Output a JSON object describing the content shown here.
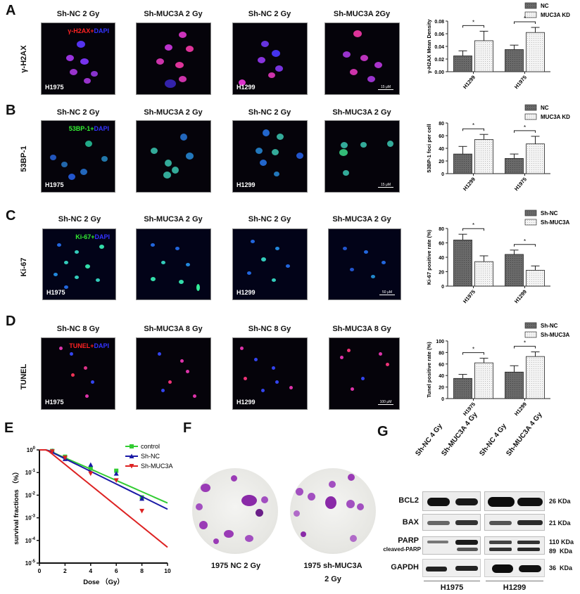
{
  "figure": {
    "panels": {
      "A": {
        "letter": "A",
        "row_label": "γ-H2AX",
        "stain_red": "γ-H2AX",
        "stain_plus": "+",
        "stain_blue": "DAPI",
        "conditions": [
          "Sh-NC  2 Gy",
          "Sh-MUC3A 2 Gy",
          "Sh-NC  2 Gy",
          "Sh-MUC3A 2Gy"
        ],
        "cell_lines": [
          "H1975",
          "",
          "H1299",
          ""
        ],
        "scale_bar": "15 μM"
      },
      "B": {
        "letter": "B",
        "row_label": "53BP-1",
        "stain_green": "53BP-1",
        "stain_plus": "+",
        "stain_blue": "DAPI",
        "conditions": [
          "Sh-NC  2 Gy",
          "Sh-MUC3A 2 Gy",
          "Sh-NC  2 Gy",
          "Sh-MUC3A 2 Gy"
        ],
        "cell_lines": [
          "H1975",
          "",
          "H1299",
          ""
        ],
        "scale_bar": "15 μM"
      },
      "C": {
        "letter": "C",
        "row_label": "Ki-67",
        "stain_green": "Ki-67",
        "stain_plus": "+",
        "stain_blue": "DAPI",
        "conditions": [
          "Sh-NC  2 Gy",
          "Sh-MUC3A 2 Gy",
          "Sh-NC  2 Gy",
          "Sh-MUC3A 2 Gy"
        ],
        "cell_lines": [
          "H1975",
          "",
          "H1299",
          ""
        ],
        "scale_bar": "50 μM"
      },
      "D": {
        "letter": "D",
        "row_label": "TUNEL",
        "stain_red": "TUNEL",
        "stain_plus": "+",
        "stain_blue": "DAPI",
        "conditions": [
          "Sh-NC  8 Gy",
          "Sh-MUC3A 8 Gy",
          "Sh-NC  8 Gy",
          "Sh-MUC3A 8 Gy"
        ],
        "cell_lines": [
          "H1975",
          "",
          "H1299",
          ""
        ],
        "scale_bar": "100 μM"
      },
      "E": {
        "letter": "E"
      },
      "F": {
        "letter": "F",
        "dish_labels": [
          "1975 NC 2 Gy",
          "1975 sh-MUC3A",
          "2 Gy"
        ]
      },
      "G": {
        "letter": "G",
        "lanes": [
          "Sh-NC 4 Gy",
          "Sh-MUC3A 4 Gy",
          "Sh-NC 4 Gy",
          "Sh-MUC3A 4 Gy"
        ],
        "proteins": [
          "BCL2",
          "BAX",
          "PARP",
          "cleaved-PARP",
          "GAPDH"
        ],
        "weights": [
          "26 KDa",
          "21 KDa",
          "110 KDa",
          "89  KDa",
          "36  KDa"
        ],
        "cell_lines": [
          "H1975",
          "H1299"
        ]
      }
    }
  },
  "chart_data": [
    {
      "id": "A-chart",
      "type": "bar",
      "categories": [
        "H1299",
        "H1975"
      ],
      "series": [
        {
          "name": "NC",
          "values": [
            0.025,
            0.035
          ],
          "errors": [
            0.008,
            0.007
          ]
        },
        {
          "name": "MUC3A KD",
          "values": [
            0.049,
            0.062
          ],
          "errors": [
            0.015,
            0.008
          ]
        }
      ],
      "ylabel": "γ-H2AX Mean Density",
      "ylim": [
        0,
        0.08
      ],
      "yticks": [
        "0.00",
        "0.02",
        "0.04",
        "0.06",
        "0.08"
      ],
      "significance": [
        "*",
        "*"
      ],
      "legend_position": "top-right"
    },
    {
      "id": "B-chart",
      "type": "bar",
      "categories": [
        "H1299",
        "H1975"
      ],
      "series": [
        {
          "name": "NC",
          "values": [
            31,
            24
          ],
          "errors": [
            12,
            7
          ]
        },
        {
          "name": "MUC3A KD",
          "values": [
            54,
            47
          ],
          "errors": [
            8,
            12
          ]
        }
      ],
      "ylabel": "53BP-1 foci per cell",
      "ylim": [
        0,
        80
      ],
      "yticks": [
        "0",
        "20",
        "40",
        "60",
        "80"
      ],
      "significance": [
        "*",
        "*"
      ],
      "legend_position": "top-right"
    },
    {
      "id": "C-chart",
      "type": "bar",
      "categories": [
        "H1975",
        "H1299"
      ],
      "series": [
        {
          "name": "Sh-NC",
          "values": [
            64,
            44
          ],
          "errors": [
            8,
            6
          ]
        },
        {
          "name": "Sh-MUC3A",
          "values": [
            34,
            22
          ],
          "errors": [
            8,
            6
          ]
        }
      ],
      "ylabel": "Ki-67 positive rate (%)",
      "ylim": [
        0,
        80
      ],
      "yticks": [
        "0",
        "20",
        "40",
        "60",
        "80"
      ],
      "significance": [
        "*",
        "*"
      ],
      "legend_position": "top-right"
    },
    {
      "id": "D-chart",
      "type": "bar",
      "categories": [
        "H1975",
        "H1299"
      ],
      "series": [
        {
          "name": "Sh-NC",
          "values": [
            35,
            46
          ],
          "errors": [
            7,
            11
          ]
        },
        {
          "name": "Sh-MUC3A",
          "values": [
            62,
            73
          ],
          "errors": [
            8,
            8
          ]
        }
      ],
      "ylabel": "Tunel positive rate (%)",
      "ylim": [
        0,
        100
      ],
      "yticks": [
        "0",
        "20",
        "40",
        "60",
        "80",
        "100"
      ],
      "significance": [
        "*",
        "*"
      ],
      "legend_position": "top-right"
    },
    {
      "id": "E-chart",
      "type": "line",
      "title": "",
      "xlabel": "Dose （Gy）",
      "ylabel": "survival fractions （%）",
      "x": [
        0,
        2,
        4,
        6,
        8,
        10
      ],
      "xticks": [
        "0",
        "2",
        "4",
        "6",
        "8",
        "10"
      ],
      "yticks": [
        "10^0",
        "10^-1",
        "10^-2",
        "10^-3",
        "10^-4",
        "10^-5"
      ],
      "yscale": "log",
      "ylim": [
        1e-05,
        1
      ],
      "xlim": [
        0,
        10
      ],
      "series": [
        {
          "name": "control",
          "color": "#33cc33",
          "marker": "square",
          "points_x": [
            1,
            2,
            4,
            6,
            8
          ],
          "points_y": [
            0.9,
            0.5,
            0.15,
            0.12,
            0.008
          ],
          "fit_end": 0.0045
        },
        {
          "name": "Sh-NC",
          "color": "#1a1aa6",
          "marker": "triangle-up",
          "points_x": [
            1,
            2,
            4,
            6,
            8
          ],
          "points_y": [
            0.9,
            0.4,
            0.22,
            0.09,
            0.007
          ],
          "fit_end": 0.0024
        },
        {
          "name": "Sh-MUC3A",
          "color": "#dd2222",
          "marker": "triangle-down",
          "points_x": [
            1,
            2,
            4,
            6,
            8
          ],
          "points_y": [
            0.85,
            0.45,
            0.09,
            0.045,
            0.002
          ],
          "fit_end": 5e-05
        }
      ],
      "legend_position": "top-right"
    }
  ]
}
